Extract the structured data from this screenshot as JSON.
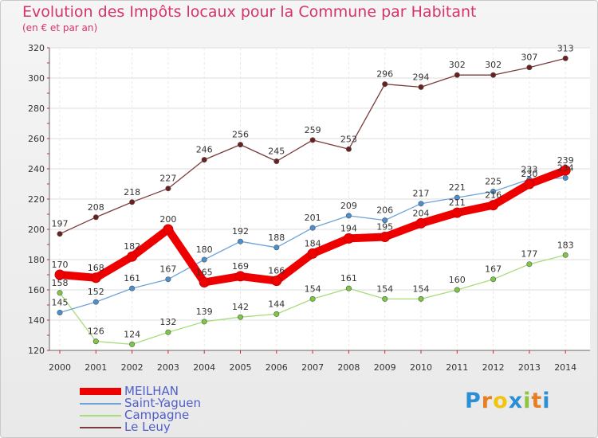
{
  "title": "Evolution des Impôts locaux pour la Commune par Habitant",
  "subtitle": "(en € et par an)",
  "brand": {
    "letters": [
      "P",
      "r",
      "o",
      "x",
      "i",
      "t",
      "i"
    ],
    "colors": [
      "#2b8fd6",
      "#e67e22",
      "#f1c40f",
      "#2b8fd6",
      "#8cc63f",
      "#e67e22",
      "#2b8fd6"
    ]
  },
  "chart_data": {
    "type": "line",
    "title": "Evolution des Impôts locaux pour la Commune par Habitant",
    "subtitle": "(en € et par an)",
    "x": [
      "2000",
      "2001",
      "2002",
      "2003",
      "2004",
      "2005",
      "2006",
      "2007",
      "2008",
      "2009",
      "2010",
      "2011",
      "2012",
      "2013",
      "2014"
    ],
    "ylim": [
      120,
      320
    ],
    "yticks": [
      120,
      140,
      160,
      180,
      200,
      220,
      240,
      260,
      280,
      300,
      320
    ],
    "grid": true,
    "legend_position": "bottom-left",
    "series": [
      {
        "name": "MEILHAN",
        "color": "#ee0000",
        "marker": "#ee0000",
        "width": "thick",
        "values": [
          170,
          168,
          182,
          200,
          165,
          169,
          166,
          184,
          194,
          195,
          204,
          211,
          216,
          230,
          239
        ]
      },
      {
        "name": "Saint-Yaguen",
        "color": "#6ea3d8",
        "marker": "#4a8fd0",
        "width": "thin",
        "values": [
          145,
          152,
          161,
          167,
          180,
          192,
          188,
          201,
          209,
          206,
          217,
          221,
          225,
          233,
          234
        ]
      },
      {
        "name": "Campagne",
        "color": "#a8dc7a",
        "marker": "#7cc743",
        "width": "thin",
        "values": [
          158,
          126,
          124,
          132,
          139,
          142,
          144,
          154,
          161,
          154,
          154,
          160,
          167,
          177,
          183
        ]
      },
      {
        "name": "Le Leuy",
        "color": "#7a3b3b",
        "marker": "#6b1f1f",
        "width": "thin",
        "values": [
          197,
          208,
          218,
          227,
          246,
          256,
          245,
          259,
          253,
          296,
          294,
          302,
          302,
          307,
          313
        ]
      }
    ]
  }
}
